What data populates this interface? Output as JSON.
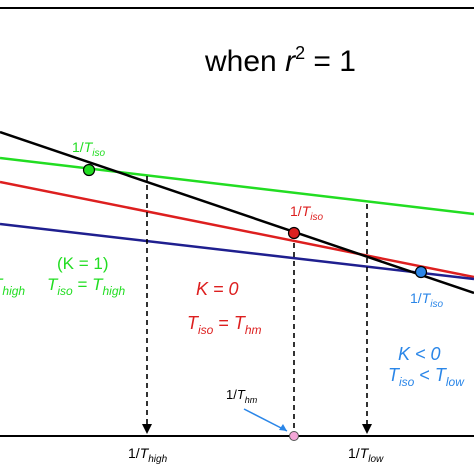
{
  "title": {
    "prefix": "when ",
    "var": "r",
    "sup": "2",
    "suffix": " = 1"
  },
  "colors": {
    "black": "#000000",
    "green": "#22dd22",
    "red": "#dd1f1f",
    "navy": "#1f1f8f",
    "blue": "#2a86e8",
    "pink": "#f4a6d7"
  },
  "labels": {
    "green_point": {
      "pre": "1/",
      "var": "T",
      "sub": "iso"
    },
    "red_point": {
      "pre": "1/",
      "var": "T",
      "sub": "iso"
    },
    "blue_point": {
      "pre": "1/",
      "var": "T",
      "sub": "iso"
    },
    "left_partial": {
      "var": "T",
      "sub": "high"
    },
    "green_case_line1": "(K = 1)",
    "green_case_line2": {
      "a": "T",
      "a_sub": "iso",
      "eq": " = ",
      "b": "T",
      "b_sub": "high"
    },
    "red_case_line1": "K = 0",
    "red_case_line2": {
      "a": "T",
      "a_sub": "iso",
      "eq": " = ",
      "b": "T",
      "b_sub": "hm"
    },
    "blue_case_line1": "K < 0",
    "blue_case_line2": {
      "a": "T",
      "a_sub": "iso",
      "eq": " < ",
      "b": "T",
      "b_sub": "low"
    },
    "axis_high": {
      "pre": "1/",
      "var": "T",
      "sub": "high"
    },
    "axis_low": {
      "pre": "1/",
      "var": "T",
      "sub": "low"
    },
    "axis_hm": {
      "pre": "1/",
      "var": "T",
      "sub": "hm"
    }
  }
}
